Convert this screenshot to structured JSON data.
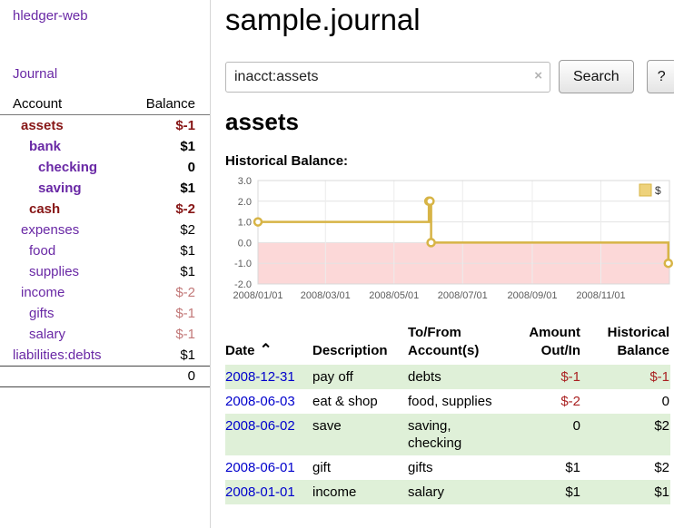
{
  "colors": {
    "link_purple": "#6928a5",
    "date_blue": "#0000cc",
    "neg_dark": "#871616",
    "neg_light": "#c27878",
    "neg_table": "#aa2222",
    "row_green": "#dff0d8"
  },
  "sidebar": {
    "app_title": "hledger-web",
    "journal_link": "Journal",
    "accounts_header": {
      "account": "Account",
      "balance": "Balance"
    },
    "accounts": [
      {
        "name": "assets",
        "balance": "$-1"
      },
      {
        "name": "bank",
        "balance": "$1"
      },
      {
        "name": "checking",
        "balance": "0"
      },
      {
        "name": "saving",
        "balance": "$1"
      },
      {
        "name": "cash",
        "balance": "$-2"
      },
      {
        "name": "expenses",
        "balance": "$2"
      },
      {
        "name": "food",
        "balance": "$1"
      },
      {
        "name": "supplies",
        "balance": "$1"
      },
      {
        "name": "income",
        "balance": "$-2"
      },
      {
        "name": "gifts",
        "balance": "$-1"
      },
      {
        "name": "salary",
        "balance": "$-1"
      },
      {
        "name": "liabilities:debts",
        "balance": "$1"
      }
    ],
    "total": "0"
  },
  "main": {
    "title": "sample.journal",
    "search": {
      "value": "inacct:assets",
      "clear_icon": "×",
      "button_label": "Search",
      "help_label": "?"
    },
    "account_heading": "assets",
    "chart_label": "Historical Balance:"
  },
  "chart_data": {
    "type": "line",
    "step": true,
    "title": "Historical Balance",
    "x_domain": [
      "2008-01-01",
      "2009-01-01"
    ],
    "ylim": [
      -2,
      3
    ],
    "y_ticks": [
      3,
      2,
      1,
      0,
      -1,
      -2
    ],
    "x_ticks": [
      {
        "date": "2008-01-01",
        "label": "2008/01/01"
      },
      {
        "date": "2008-03-01",
        "label": "2008/03/01"
      },
      {
        "date": "2008-05-01",
        "label": "2008/05/01"
      },
      {
        "date": "2008-07-01",
        "label": "2008/07/01"
      },
      {
        "date": "2008-09-01",
        "label": "2008/09/01"
      },
      {
        "date": "2008-11-01",
        "label": "2008/11/01"
      }
    ],
    "series": [
      {
        "name": "$",
        "color": "#d7b446",
        "marker_fill": "#ffffff",
        "points": [
          [
            "2008-01-01",
            1
          ],
          [
            "2008-06-01",
            2
          ],
          [
            "2008-06-02",
            2
          ],
          [
            "2008-06-03",
            0
          ],
          [
            "2008-12-31",
            -1
          ]
        ]
      }
    ],
    "negative_region_color": "#fcd8d8",
    "grid": true,
    "legend_position": "top-right"
  },
  "transactions": {
    "headers": {
      "date": "Date",
      "sort_icon": "⌃",
      "description": "Description",
      "accounts": "To/From\nAccount(s)",
      "amount": "Amount\nOut/In",
      "balance": "Historical\nBalance"
    },
    "rows": [
      {
        "date": "2008-12-31",
        "description": "pay off",
        "accounts": "debts",
        "amount": "$-1",
        "balance": "$-1"
      },
      {
        "date": "2008-06-03",
        "description": "eat & shop",
        "accounts": "food, supplies",
        "amount": "$-2",
        "balance": "0"
      },
      {
        "date": "2008-06-02",
        "description": "save",
        "accounts": "saving, checking",
        "amount": "0",
        "balance": "$2"
      },
      {
        "date": "2008-06-01",
        "description": "gift",
        "accounts": "gifts",
        "amount": "$1",
        "balance": "$2"
      },
      {
        "date": "2008-01-01",
        "description": "income",
        "accounts": "salary",
        "amount": "$1",
        "balance": "$1"
      }
    ]
  }
}
